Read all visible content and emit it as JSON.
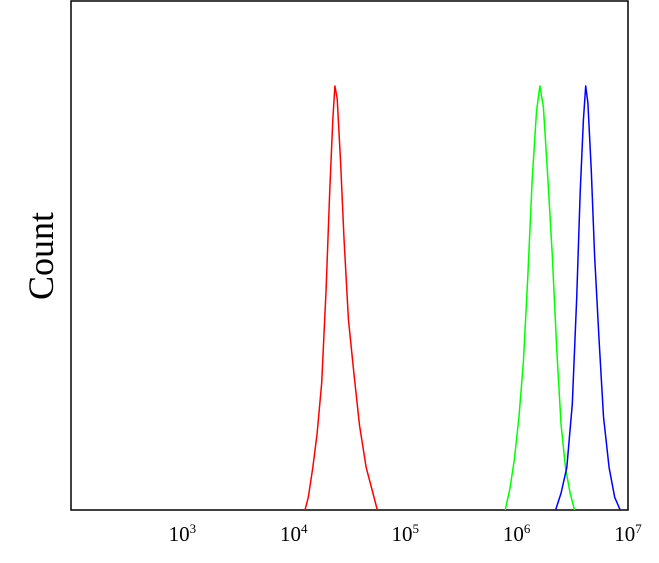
{
  "chart_data": {
    "type": "line",
    "title": "",
    "xlabel": "",
    "ylabel": "Count",
    "x_scale": "log",
    "xlim": [
      100,
      10000000
    ],
    "ylim": [
      0,
      1.0
    ],
    "grid": false,
    "legend": "none",
    "x_ticks": [
      {
        "value": 1000,
        "base": "10",
        "exp": "3"
      },
      {
        "value": 10000,
        "base": "10",
        "exp": "4"
      },
      {
        "value": 100000,
        "base": "10",
        "exp": "5"
      },
      {
        "value": 1000000,
        "base": "10",
        "exp": "6"
      },
      {
        "value": 10000000,
        "base": "10",
        "exp": "7"
      }
    ],
    "series": [
      {
        "color": "#ff0000",
        "points": [
          [
            12600,
            0
          ],
          [
            13500,
            0.03
          ],
          [
            14800,
            0.1
          ],
          [
            16200,
            0.18
          ],
          [
            17800,
            0.3
          ],
          [
            19500,
            0.52
          ],
          [
            21000,
            0.75
          ],
          [
            22400,
            0.92
          ],
          [
            23400,
            1.0
          ],
          [
            24500,
            0.97
          ],
          [
            26300,
            0.82
          ],
          [
            28200,
            0.64
          ],
          [
            30900,
            0.45
          ],
          [
            34700,
            0.32
          ],
          [
            38900,
            0.2
          ],
          [
            44700,
            0.1
          ],
          [
            51300,
            0.04
          ],
          [
            56200,
            0
          ]
        ]
      },
      {
        "color": "#00ff00",
        "points": [
          [
            790000,
            0
          ],
          [
            870000,
            0.05
          ],
          [
            955000,
            0.12
          ],
          [
            1050000,
            0.22
          ],
          [
            1150000,
            0.35
          ],
          [
            1260000,
            0.55
          ],
          [
            1380000,
            0.78
          ],
          [
            1510000,
            0.94
          ],
          [
            1620000,
            1.0
          ],
          [
            1740000,
            0.95
          ],
          [
            1910000,
            0.78
          ],
          [
            2090000,
            0.6
          ],
          [
            2290000,
            0.38
          ],
          [
            2510000,
            0.2
          ],
          [
            2750000,
            0.1
          ],
          [
            3020000,
            0.04
          ],
          [
            3310000,
            0
          ]
        ]
      },
      {
        "color": "#0000ff",
        "points": [
          [
            2240000,
            0
          ],
          [
            2510000,
            0.04
          ],
          [
            2820000,
            0.1
          ],
          [
            3160000,
            0.25
          ],
          [
            3460000,
            0.5
          ],
          [
            3720000,
            0.75
          ],
          [
            3980000,
            0.92
          ],
          [
            4170000,
            1.0
          ],
          [
            4370000,
            0.96
          ],
          [
            4680000,
            0.8
          ],
          [
            5010000,
            0.6
          ],
          [
            5500000,
            0.4
          ],
          [
            6030000,
            0.22
          ],
          [
            6760000,
            0.1
          ],
          [
            7590000,
            0.03
          ],
          [
            8510000,
            0
          ]
        ]
      }
    ]
  }
}
